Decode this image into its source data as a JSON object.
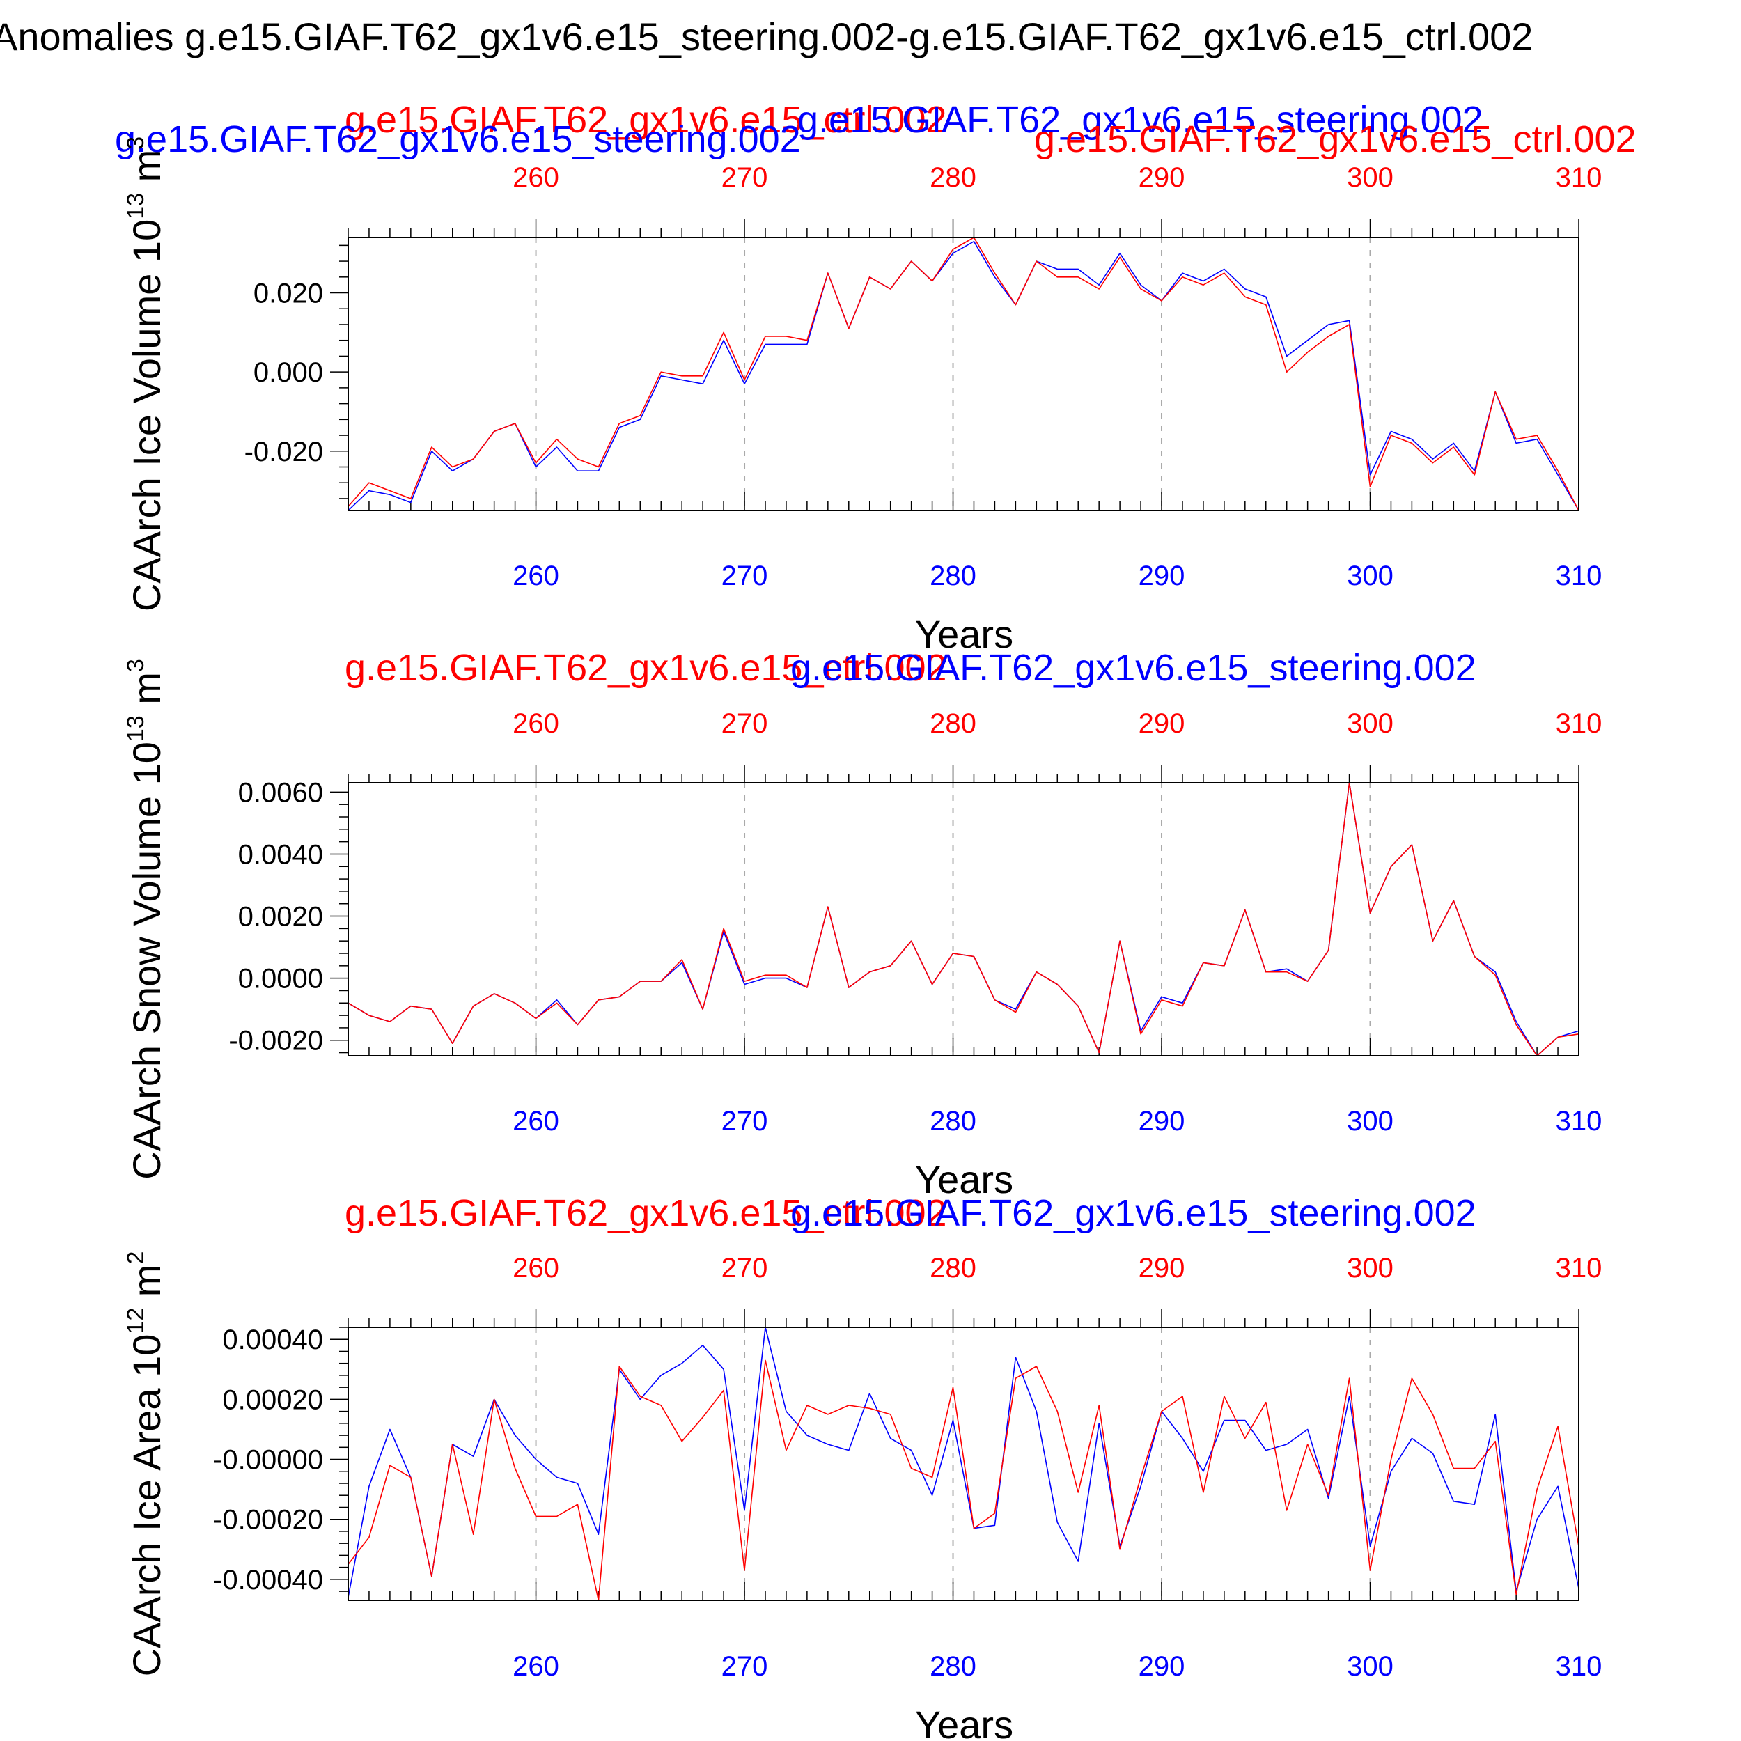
{
  "page_title": "Anomalies g.e15.GIAF.T62_gx1v6.e15_steering.002-g.e15.GIAF.T62_gx1v6.e15_ctrl.002",
  "colors": {
    "ctrl": "#ff0000",
    "steering": "#0000ff",
    "axis": "#000000",
    "grid": "#aaaaaa"
  },
  "chart_data": [
    {
      "type": "line",
      "id": "ice-volume",
      "ylabel": "CAArch Ice Volume 10^13 m^3",
      "xlabel": "Years",
      "title_left": "g.e15.GIAF.T62_gx1v6.e15_ctrl.002",
      "title_right": "g.e15.GIAF.T62_gx1v6.e15_steering.002",
      "legend_left": "g.e15.GIAF.T62_gx1v6.e15_steering.002",
      "legend_right": "g.e15.GIAF.T62_gx1v6.e15_ctrl.002",
      "xlim": [
        251,
        310
      ],
      "xticks": [
        260,
        270,
        280,
        290,
        300,
        310
      ],
      "xtick_labels": [
        "260",
        "270",
        "280",
        "290",
        "300",
        "310"
      ],
      "ylim": [
        -0.035,
        0.034
      ],
      "yticks": [
        -0.02,
        0.0,
        0.02
      ],
      "ytick_labels": [
        "-0.020",
        "0.000",
        "0.020"
      ],
      "x": [
        251,
        252,
        253,
        254,
        255,
        256,
        257,
        258,
        259,
        260,
        261,
        262,
        263,
        264,
        265,
        266,
        267,
        268,
        269,
        270,
        271,
        272,
        273,
        274,
        275,
        276,
        277,
        278,
        279,
        280,
        281,
        282,
        283,
        284,
        285,
        286,
        287,
        288,
        289,
        290,
        291,
        292,
        293,
        294,
        295,
        296,
        297,
        298,
        299,
        300,
        301,
        302,
        303,
        304,
        305,
        306,
        307,
        308,
        309,
        310
      ],
      "series": [
        {
          "name": "g.e15.GIAF.T62_gx1v6.e15_steering.002",
          "color": "#0000ff",
          "values": [
            -0.035,
            -0.03,
            -0.031,
            -0.033,
            -0.02,
            -0.025,
            -0.022,
            -0.015,
            -0.013,
            -0.024,
            -0.019,
            -0.025,
            -0.025,
            -0.014,
            -0.012,
            -0.001,
            -0.002,
            -0.003,
            0.008,
            -0.003,
            0.007,
            0.007,
            0.007,
            0.025,
            0.011,
            0.024,
            0.021,
            0.028,
            0.023,
            0.03,
            0.033,
            0.024,
            0.017,
            0.028,
            0.026,
            0.026,
            0.022,
            0.03,
            0.022,
            0.018,
            0.025,
            0.023,
            0.026,
            0.021,
            0.019,
            0.004,
            0.008,
            0.012,
            0.013,
            -0.026,
            -0.015,
            -0.017,
            -0.022,
            -0.018,
            -0.025,
            -0.005,
            -0.018,
            -0.017,
            -0.026,
            -0.035
          ]
        },
        {
          "name": "g.e15.GIAF.T62_gx1v6.e15_ctrl.002",
          "color": "#ff0000",
          "values": [
            -0.034,
            -0.028,
            -0.03,
            -0.032,
            -0.019,
            -0.024,
            -0.022,
            -0.015,
            -0.013,
            -0.023,
            -0.017,
            -0.022,
            -0.024,
            -0.013,
            -0.011,
            0.0,
            -0.001,
            -0.001,
            0.01,
            -0.002,
            0.009,
            0.009,
            0.008,
            0.025,
            0.011,
            0.024,
            0.021,
            0.028,
            0.023,
            0.031,
            0.034,
            0.025,
            0.017,
            0.028,
            0.024,
            0.024,
            0.021,
            0.029,
            0.021,
            0.018,
            0.024,
            0.022,
            0.025,
            0.019,
            0.017,
            0.0,
            0.005,
            0.009,
            0.012,
            -0.029,
            -0.016,
            -0.018,
            -0.023,
            -0.019,
            -0.026,
            -0.005,
            -0.017,
            -0.016,
            -0.025,
            -0.035
          ]
        }
      ]
    },
    {
      "type": "line",
      "id": "snow-volume",
      "ylabel": "CAArch Snow Volume 10^13 m^3",
      "xlabel": "Years",
      "title_left": "g.e15.GIAF.T62_gx1v6.e15_ctrl.002",
      "title_right": "g.e15.GIAF.T62_gx1v6.e15_steering.002",
      "xlim": [
        251,
        310
      ],
      "xticks": [
        260,
        270,
        280,
        290,
        300,
        310
      ],
      "xtick_labels": [
        "260",
        "270",
        "280",
        "290",
        "300",
        "310"
      ],
      "ylim": [
        -0.0025,
        0.0063
      ],
      "yticks": [
        -0.002,
        0.0,
        0.002,
        0.004,
        0.006
      ],
      "ytick_labels": [
        "-0.0020",
        "0.0000",
        "0.0020",
        "0.0040",
        "0.0060"
      ],
      "x": [
        251,
        252,
        253,
        254,
        255,
        256,
        257,
        258,
        259,
        260,
        261,
        262,
        263,
        264,
        265,
        266,
        267,
        268,
        269,
        270,
        271,
        272,
        273,
        274,
        275,
        276,
        277,
        278,
        279,
        280,
        281,
        282,
        283,
        284,
        285,
        286,
        287,
        288,
        289,
        290,
        291,
        292,
        293,
        294,
        295,
        296,
        297,
        298,
        299,
        300,
        301,
        302,
        303,
        304,
        305,
        306,
        307,
        308,
        309,
        310
      ],
      "series": [
        {
          "name": "g.e15.GIAF.T62_gx1v6.e15_steering.002",
          "color": "#0000ff",
          "values": [
            -0.0008,
            -0.0012,
            -0.0014,
            -0.0009,
            -0.001,
            -0.0021,
            -0.0009,
            -0.0005,
            -0.0008,
            -0.0013,
            -0.0007,
            -0.0015,
            -0.0007,
            -0.0006,
            -0.0001,
            -0.0001,
            0.0005,
            -0.001,
            0.0015,
            -0.0002,
            0.0,
            0.0,
            -0.0003,
            0.0023,
            -0.0003,
            0.0002,
            0.0004,
            0.0012,
            -0.0002,
            0.0008,
            0.0007,
            -0.0007,
            -0.001,
            0.0002,
            -0.0002,
            -0.0009,
            -0.0024,
            0.0012,
            -0.0017,
            -0.0006,
            -0.0008,
            0.0005,
            0.0004,
            0.0022,
            0.0002,
            0.0003,
            -0.0001,
            0.0009,
            0.0063,
            0.0021,
            0.0036,
            0.0043,
            0.0012,
            0.0025,
            0.0007,
            0.0002,
            -0.0014,
            -0.0025,
            -0.0019,
            -0.0017
          ]
        },
        {
          "name": "g.e15.GIAF.T62_gx1v6.e15_ctrl.002",
          "color": "#ff0000",
          "values": [
            -0.0008,
            -0.0012,
            -0.0014,
            -0.0009,
            -0.001,
            -0.0021,
            -0.0009,
            -0.0005,
            -0.0008,
            -0.0013,
            -0.0008,
            -0.0015,
            -0.0007,
            -0.0006,
            -0.0001,
            -0.0001,
            0.0006,
            -0.001,
            0.0016,
            -0.0001,
            0.0001,
            0.0001,
            -0.0003,
            0.0023,
            -0.0003,
            0.0002,
            0.0004,
            0.0012,
            -0.0002,
            0.0008,
            0.0007,
            -0.0007,
            -0.0011,
            0.0002,
            -0.0002,
            -0.0009,
            -0.0024,
            0.0012,
            -0.0018,
            -0.0007,
            -0.0009,
            0.0005,
            0.0004,
            0.0022,
            0.0002,
            0.0002,
            -0.0001,
            0.0009,
            0.0063,
            0.0021,
            0.0036,
            0.0043,
            0.0012,
            0.0025,
            0.0007,
            0.0001,
            -0.0015,
            -0.0025,
            -0.0019,
            -0.0018
          ]
        }
      ]
    },
    {
      "type": "line",
      "id": "ice-area",
      "ylabel": "CAArch Ice Area 10^12 m^2",
      "xlabel": "Years",
      "title_left": "g.e15.GIAF.T62_gx1v6.e15_ctrl.002",
      "title_right": "g.e15.GIAF.T62_gx1v6.e15_steering.002",
      "xlim": [
        251,
        310
      ],
      "xticks": [
        260,
        270,
        280,
        290,
        300,
        310
      ],
      "xtick_labels": [
        "260",
        "270",
        "280",
        "290",
        "300",
        "310"
      ],
      "ylim": [
        -0.00047,
        0.00044
      ],
      "yticks": [
        -0.0004,
        -0.0002,
        0.0,
        0.0002,
        0.0004
      ],
      "ytick_labels": [
        "-0.00040",
        "-0.00020",
        "-0.00000",
        "0.00020",
        "0.00040"
      ],
      "x": [
        251,
        252,
        253,
        254,
        255,
        256,
        257,
        258,
        259,
        260,
        261,
        262,
        263,
        264,
        265,
        266,
        267,
        268,
        269,
        270,
        271,
        272,
        273,
        274,
        275,
        276,
        277,
        278,
        279,
        280,
        281,
        282,
        283,
        284,
        285,
        286,
        287,
        288,
        289,
        290,
        291,
        292,
        293,
        294,
        295,
        296,
        297,
        298,
        299,
        300,
        301,
        302,
        303,
        304,
        305,
        306,
        307,
        308,
        309,
        310
      ],
      "series": [
        {
          "name": "g.e15.GIAF.T62_gx1v6.e15_steering.002",
          "color": "#0000ff",
          "values": [
            -0.00046,
            -9e-05,
            0.0001,
            -6e-05,
            -0.00039,
            5e-05,
            1e-05,
            0.0002,
            8e-05,
            0.0,
            -6e-05,
            -8e-05,
            -0.00025,
            0.0003,
            0.0002,
            0.00028,
            0.00032,
            0.00038,
            0.0003,
            -0.00017,
            0.00044,
            0.00016,
            8e-05,
            5e-05,
            3e-05,
            0.00022,
            7e-05,
            3e-05,
            -0.00012,
            0.00013,
            -0.00023,
            -0.00022,
            0.00034,
            0.00016,
            -0.00021,
            -0.00034,
            0.00012,
            -0.00029,
            -9e-05,
            0.00016,
            7e-05,
            -4e-05,
            0.00013,
            0.00013,
            3e-05,
            5e-05,
            0.0001,
            -0.00013,
            0.00021,
            -0.00029,
            -4e-05,
            7e-05,
            2e-05,
            -0.00014,
            -0.00015,
            0.00015,
            -0.00044,
            -0.0002,
            -9e-05,
            -0.00043
          ]
        },
        {
          "name": "g.e15.GIAF.T62_gx1v6.e15_ctrl.002",
          "color": "#ff0000",
          "values": [
            -0.00035,
            -0.00026,
            -2e-05,
            -6e-05,
            -0.00039,
            5e-05,
            -0.00025,
            0.0002,
            -3e-05,
            -0.00019,
            -0.00019,
            -0.00015,
            -0.00047,
            0.00031,
            0.00021,
            0.00018,
            6e-05,
            0.00014,
            0.00023,
            -0.00037,
            0.00033,
            3e-05,
            0.00018,
            0.00015,
            0.00018,
            0.00017,
            0.00015,
            -3e-05,
            -6e-05,
            0.00024,
            -0.00023,
            -0.00018,
            0.00027,
            0.00031,
            0.00016,
            -0.00011,
            0.00018,
            -0.0003,
            -6e-05,
            0.00016,
            0.00021,
            -0.00011,
            0.00021,
            7e-05,
            0.00019,
            -0.00017,
            5e-05,
            -0.00012,
            0.00027,
            -0.00037,
            0.0,
            0.00027,
            0.00015,
            -3e-05,
            -3e-05,
            6e-05,
            -0.00045,
            -0.0001,
            0.00011,
            -0.00029
          ]
        }
      ]
    }
  ]
}
